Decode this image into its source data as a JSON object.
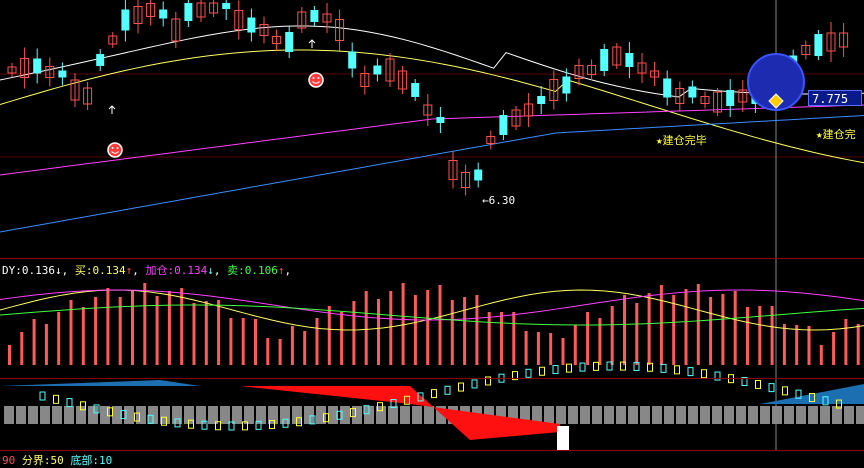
{
  "indicator_legend": {
    "dy_label": "DY:",
    "dy_value": "0.136",
    "dy_arrow": "↓",
    "buy_label": "买:",
    "buy_value": "0.134",
    "buy_arrow": "↑",
    "add_label": "加仓:",
    "add_value": "0.134",
    "add_arrow": "↓",
    "sell_label": "卖:",
    "sell_value": "0.106",
    "sell_arrow": "↑"
  },
  "bottom_legend": {
    "prefix": "90",
    "boundary_label": "分界:",
    "boundary_value": "50",
    "bottom_label": "底部:",
    "bottom_value": "10"
  },
  "annotations": {
    "low_price": "6.30",
    "current_price": "7.775",
    "build_complete_1": "★建仓完毕",
    "build_complete_2": "★建仓完"
  },
  "colors": {
    "background": "#000000",
    "up_candle": "#ff5050",
    "down_candle": "#54ffff",
    "ma_white": "#ffffff",
    "ma_yellow": "#ffff60",
    "ma_magenta": "#ff40ff",
    "ma_blue": "#3a8cff",
    "volume_bar": "#ff5a5a",
    "separator": "#8a0000",
    "highlight_circle": "#1c2bb0"
  },
  "icons": [
    "smiley-icon",
    "diamond-signal-icon",
    "up-arrow-marker-icon"
  ]
}
